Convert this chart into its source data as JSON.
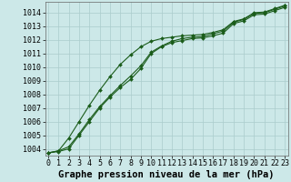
{
  "title": "Graphe pression niveau de la mer (hPa)",
  "bg_color": "#cce8e8",
  "grid_color": "#aacccc",
  "line_color": "#1a5c1a",
  "xlim": [
    -0.3,
    23.3
  ],
  "ylim": [
    1003.5,
    1014.8
  ],
  "yticks": [
    1004,
    1005,
    1006,
    1007,
    1008,
    1009,
    1010,
    1011,
    1012,
    1013,
    1014
  ],
  "xticks": [
    0,
    1,
    2,
    3,
    4,
    5,
    6,
    7,
    8,
    9,
    10,
    11,
    12,
    13,
    14,
    15,
    16,
    17,
    18,
    19,
    20,
    21,
    22,
    23
  ],
  "series": [
    [
      1003.7,
      1003.8,
      1004.0,
      1005.0,
      1006.0,
      1007.0,
      1007.8,
      1008.5,
      1009.1,
      1009.9,
      1011.0,
      1011.5,
      1011.8,
      1011.95,
      1012.1,
      1012.15,
      1012.3,
      1012.5,
      1013.2,
      1013.4,
      1013.85,
      1013.9,
      1014.15,
      1014.4
    ],
    [
      1003.7,
      1003.85,
      1004.15,
      1005.1,
      1006.15,
      1007.1,
      1007.9,
      1008.65,
      1009.35,
      1010.1,
      1011.1,
      1011.55,
      1011.9,
      1012.1,
      1012.2,
      1012.25,
      1012.45,
      1012.65,
      1013.3,
      1013.5,
      1013.95,
      1014.0,
      1014.25,
      1014.5
    ],
    [
      1003.7,
      1003.85,
      1004.8,
      1006.0,
      1007.2,
      1008.3,
      1009.3,
      1010.2,
      1010.9,
      1011.5,
      1011.9,
      1012.1,
      1012.2,
      1012.3,
      1012.35,
      1012.4,
      1012.55,
      1012.75,
      1013.35,
      1013.55,
      1014.0,
      1014.05,
      1014.3,
      1014.55
    ]
  ],
  "marker": "D",
  "markersize": 2.0,
  "linewidth": 0.8,
  "title_fontsize": 7.5,
  "tick_fontsize": 6.0,
  "ylabel_fontsize": 6.0
}
